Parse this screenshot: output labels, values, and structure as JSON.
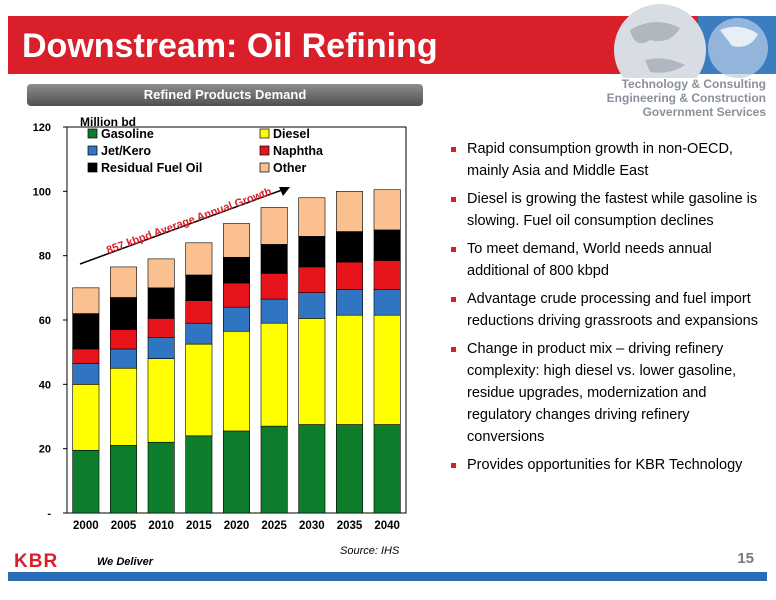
{
  "slide": {
    "title": "Downstream: Oil Refining",
    "business_lines": [
      "Technology & Consulting",
      "Engineering & Construction",
      "Government Services"
    ],
    "chart_header": "Refined Products Demand",
    "source": "Source: IHS",
    "page_number": "15",
    "logo": "KBR",
    "tagline": "We Deliver",
    "bullets": [
      "Rapid consumption growth in non-OECD, mainly Asia and Middle East",
      "Diesel is growing the fastest while gasoline is slowing.  Fuel oil consumption declines",
      "To meet demand, World needs annual additional of 800 kbpd",
      "Advantage crude processing and fuel import reductions driving grassroots and expansions",
      "Change in product mix – driving refinery complexity: high diesel vs. lower gasoline, residue upgrades, modernization and regulatory changes driving refinery conversions",
      "Provides opportunities for KBR Technology"
    ],
    "colors": {
      "brand_red": "#d9202a",
      "footer_blue": "#2a6db5"
    }
  },
  "chart_data": {
    "type": "bar",
    "stacked": true,
    "ylabel": "Million bd",
    "ylim": [
      0,
      120
    ],
    "yticks": [
      0,
      20,
      40,
      60,
      80,
      100,
      120
    ],
    "ytick_labels": [
      "-",
      "20",
      "40",
      "60",
      "80",
      "100",
      "120"
    ],
    "categories": [
      "2000",
      "2005",
      "2010",
      "2015",
      "2020",
      "2025",
      "2030",
      "2035",
      "2040"
    ],
    "legend_placement": "top-left",
    "series": [
      {
        "name": "Gasoline",
        "color": "#0d7d2b",
        "values": [
          19.5,
          21,
          22,
          24,
          25.5,
          27,
          27.5,
          27.5,
          27.5
        ]
      },
      {
        "name": "Diesel",
        "color": "#ffff00",
        "values": [
          20.5,
          24,
          26,
          28.5,
          31,
          32,
          33,
          34,
          34
        ]
      },
      {
        "name": "Jet/Kero",
        "color": "#2f75c2",
        "values": [
          6.5,
          6,
          6.5,
          6.5,
          7.5,
          7.5,
          8,
          8,
          8
        ]
      },
      {
        "name": "Naphtha",
        "color": "#e8141c",
        "values": [
          4.5,
          6,
          6,
          7,
          7.5,
          8,
          8,
          8.5,
          9
        ]
      },
      {
        "name": "Residual Fuel Oil",
        "color": "#000000",
        "values": [
          11,
          10,
          9.5,
          8,
          8,
          9,
          9.5,
          9.5,
          9.5
        ]
      },
      {
        "name": "Other",
        "color": "#fac090",
        "values": [
          8,
          9.5,
          9,
          10,
          10.5,
          11.5,
          12,
          12.5,
          12.5
        ]
      }
    ],
    "annotation": {
      "text": "857 kbpd Average Annual Growth",
      "color": "#d9202a"
    }
  }
}
